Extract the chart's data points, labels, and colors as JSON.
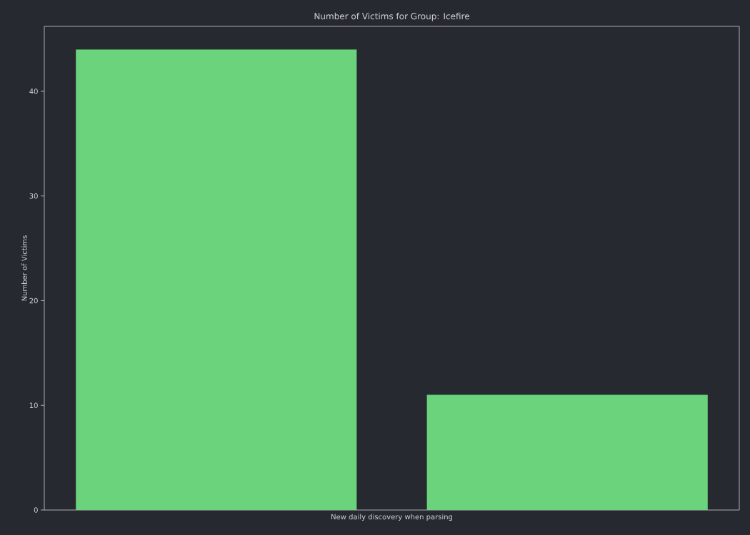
{
  "chart_data": {
    "type": "bar",
    "title": "Number of Victims for Group: Icefire",
    "xlabel": "New daily discovery when parsing",
    "ylabel": "Number of Victims",
    "categories": [
      null,
      null
    ],
    "values": [
      44,
      11
    ],
    "color": "#6bd37b",
    "ylim": [
      0,
      46.2
    ],
    "yticks": [
      0,
      10,
      20,
      30,
      40
    ]
  }
}
